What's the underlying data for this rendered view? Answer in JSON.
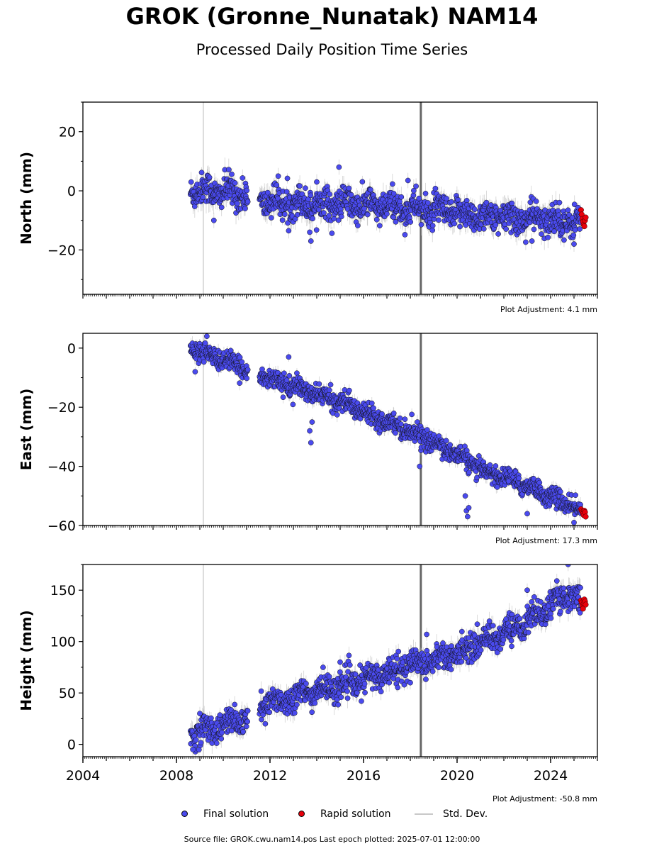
{
  "title": "GROK (Gronne_Nunatak) NAM14",
  "subtitle": "Processed Daily Position Time Series",
  "footer": "Source file: GROK.cwu.nam14.pos  Last epoch plotted: 2025-07-01 12:00:00",
  "legend": {
    "final": "Final solution",
    "rapid": "Rapid solution",
    "std": "Std. Dev."
  },
  "colors": {
    "final": "#4a4aee",
    "rapid": "#e8000b",
    "std": "#b4b4b4",
    "vline_event": "#d0d0d0",
    "vline_equipment": "#666666"
  },
  "chart_data": [
    {
      "type": "scatter",
      "ylabel": "North (mm)",
      "adjustment": "Plot Adjustment: 4.1 mm",
      "xlim": [
        2004.0,
        2026.0
      ],
      "ylim": [
        -35,
        30
      ],
      "yticks": [
        -20,
        0,
        20
      ],
      "yticklabels": [
        "−20",
        "0",
        "20"
      ],
      "vlines": [
        2009.15,
        2018.45
      ],
      "gaps": [
        [
          2011.05,
          2011.55
        ]
      ],
      "final_series": {
        "x_range": [
          2008.6,
          2025.3
        ],
        "trend": [
          [
            2008.6,
            0.5
          ],
          [
            2011.0,
            -1.0
          ],
          [
            2012.0,
            -4.0
          ],
          [
            2015.0,
            -4.5
          ],
          [
            2018.0,
            -6.0
          ],
          [
            2021.0,
            -8.5
          ],
          [
            2025.3,
            -10.5
          ]
        ],
        "scatter_mm": 2.6,
        "outliers": [
          [
            2013.75,
            -17.0
          ],
          [
            2013.7,
            -14.0
          ],
          [
            2012.8,
            -13.5
          ],
          [
            2014.95,
            8.0
          ],
          [
            2017.9,
            3.5
          ],
          [
            2023.2,
            -17.0
          ],
          [
            2025.0,
            -18.0
          ],
          [
            2009.6,
            -10.0
          ],
          [
            2014.0,
            3.0
          ]
        ]
      },
      "rapid_series": {
        "x_range": [
          2025.3,
          2025.5
        ],
        "values": [
          -6.5,
          -8.0,
          -9.5,
          -10.5,
          -11.5,
          -12.0,
          -10.0,
          -9.0
        ]
      }
    },
    {
      "type": "scatter",
      "ylabel": "East (mm)",
      "adjustment": "Plot Adjustment: 17.3 mm",
      "xlim": [
        2004.0,
        2026.0
      ],
      "ylim": [
        -60,
        5
      ],
      "yticks": [
        -60,
        -40,
        -20,
        0
      ],
      "yticklabels": [
        "−60",
        "−40",
        "−20",
        "0"
      ],
      "vlines": [
        2009.15,
        2018.45
      ],
      "gaps": [
        [
          2011.05,
          2011.55
        ]
      ],
      "final_series": {
        "x_range": [
          2008.6,
          2025.3
        ],
        "trend": [
          [
            2008.6,
            0.0
          ],
          [
            2011.0,
            -7.0
          ],
          [
            2011.6,
            -9.0
          ],
          [
            2013.7,
            -15.0
          ],
          [
            2015.0,
            -18.0
          ],
          [
            2018.0,
            -28.0
          ],
          [
            2020.0,
            -36.0
          ],
          [
            2021.0,
            -41.0
          ],
          [
            2023.0,
            -46.5
          ],
          [
            2025.3,
            -55.0
          ]
        ],
        "scatter_mm": 1.6,
        "outliers": [
          [
            2013.75,
            -32.0
          ],
          [
            2013.7,
            -28.0
          ],
          [
            2013.8,
            -25.0
          ],
          [
            2018.4,
            -40.0
          ],
          [
            2020.35,
            -50.0
          ],
          [
            2020.4,
            -55.0
          ],
          [
            2020.45,
            -57.0
          ],
          [
            2020.5,
            -54.0
          ],
          [
            2008.8,
            -8.0
          ],
          [
            2009.3,
            4.0
          ],
          [
            2012.8,
            -3.0
          ],
          [
            2022.2,
            -45.0
          ],
          [
            2025.0,
            -59.0
          ],
          [
            2023.0,
            -56.0
          ]
        ]
      },
      "rapid_series": {
        "x_range": [
          2025.3,
          2025.5
        ],
        "values": [
          -54.5,
          -55.0,
          -55.5,
          -56.0,
          -56.5,
          -55.0,
          -55.5,
          -57.0
        ]
      }
    },
    {
      "type": "scatter",
      "ylabel": "Height (mm)",
      "adjustment": "Plot Adjustment: -50.8 mm",
      "xlim": [
        2004.0,
        2026.0
      ],
      "ylim": [
        -12,
        175
      ],
      "xticks": [
        2004,
        2008,
        2012,
        2016,
        2020,
        2024
      ],
      "xticklabels": [
        "2004",
        "2008",
        "2012",
        "2016",
        "2020",
        "2024"
      ],
      "yticks": [
        0,
        50,
        100,
        150
      ],
      "yticklabels": [
        "0",
        "50",
        "100",
        "150"
      ],
      "vlines": [
        2009.15,
        2018.45
      ],
      "gaps": [
        [
          2011.05,
          2011.55
        ]
      ],
      "final_series": {
        "x_range": [
          2008.6,
          2025.3
        ],
        "trend": [
          [
            2008.6,
            10.0
          ],
          [
            2011.0,
            25.0
          ],
          [
            2011.6,
            38.0
          ],
          [
            2014.0,
            52.0
          ],
          [
            2016.0,
            62.0
          ],
          [
            2018.0,
            78.0
          ],
          [
            2020.0,
            88.0
          ],
          [
            2021.0,
            100.0
          ],
          [
            2022.0,
            108.0
          ],
          [
            2023.0,
            120.0
          ],
          [
            2024.0,
            135.0
          ],
          [
            2024.8,
            148.0
          ],
          [
            2025.3,
            138.0
          ]
        ],
        "scatter_mm": 6.5,
        "outliers": [
          [
            2009.0,
            30.0
          ],
          [
            2011.8,
            20.0
          ],
          [
            2015.0,
            80.0
          ],
          [
            2018.7,
            107.0
          ],
          [
            2024.75,
            175.0
          ],
          [
            2018.0,
            60.0
          ],
          [
            2008.7,
            -5.0
          ],
          [
            2023.0,
            150.0
          ]
        ]
      },
      "rapid_series": {
        "x_range": [
          2025.3,
          2025.5
        ],
        "values": [
          140.0,
          138.0,
          135.0,
          132.0,
          137.0,
          141.0,
          139.0,
          136.0
        ]
      }
    }
  ]
}
